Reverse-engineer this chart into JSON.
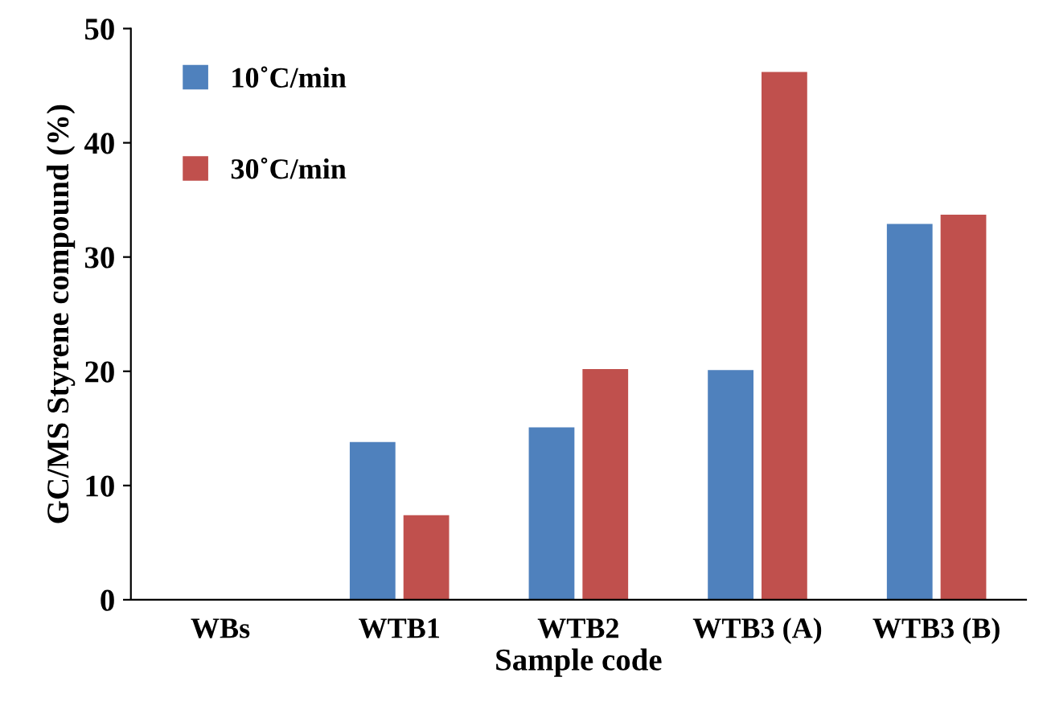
{
  "chart_data": {
    "type": "bar",
    "xlabel": "Sample code",
    "ylabel": "GC/MS Styrene compound (%)",
    "categories": [
      "WBs",
      "WTB1",
      "WTB2",
      "WTB3 (A)",
      "WTB3 (B)"
    ],
    "series": [
      {
        "name": "10˚C/min",
        "color": "#4f81bd",
        "values": [
          0,
          13.8,
          15.1,
          20.1,
          32.9
        ]
      },
      {
        "name": "30˚C/min",
        "color": "#c0504d",
        "values": [
          0,
          7.4,
          20.2,
          46.2,
          33.7
        ]
      }
    ],
    "ylim": [
      0,
      50
    ],
    "yticks": [
      0,
      10,
      20,
      30,
      40,
      50
    ],
    "grid": false,
    "legend": "top left"
  }
}
